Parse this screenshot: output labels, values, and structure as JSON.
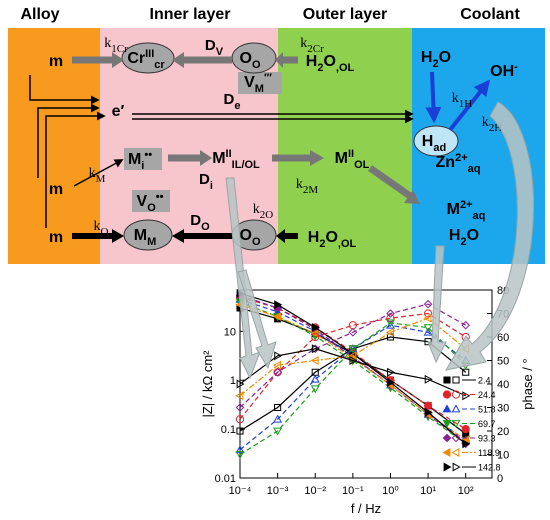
{
  "headers": [
    "Alloy",
    "Inner layer",
    "Outer layer",
    "Coolant"
  ],
  "species": [
    [
      {
        "text": "m"
      }
    ],
    [
      {
        "text": "m"
      }
    ],
    [
      {
        "text": "m"
      }
    ],
    [
      {
        "text": "Cr"
      },
      {
        "text": "III",
        "pos": "sup"
      },
      {
        "text": "cr",
        "pos": "sub"
      }
    ],
    [
      {
        "text": "O"
      },
      {
        "text": "O",
        "pos": "sub"
      }
    ],
    [
      {
        "text": "H"
      },
      {
        "text": "2",
        "pos": "sub"
      },
      {
        "text": "O"
      },
      {
        "text": ",OL",
        "pos": "sub"
      }
    ],
    [
      {
        "text": "V"
      },
      {
        "text": "M",
        "pos": "sub"
      },
      {
        "text": "′′′",
        "pos": "sup"
      }
    ],
    [
      {
        "text": "e′"
      }
    ],
    [
      {
        "text": "M"
      },
      {
        "text": "i",
        "pos": "sub"
      },
      {
        "text": "••",
        "pos": "sup"
      }
    ],
    [
      {
        "text": "M"
      },
      {
        "text": "II",
        "pos": "sup"
      },
      {
        "text": "IL/OL",
        "pos": "sub"
      }
    ],
    [
      {
        "text": "M"
      },
      {
        "text": "II",
        "pos": "sup"
      },
      {
        "text": "OL",
        "pos": "sub"
      }
    ],
    [
      {
        "text": "V"
      },
      {
        "text": "O",
        "pos": "sub"
      },
      {
        "text": "••",
        "pos": "sup"
      }
    ],
    [
      {
        "text": "M"
      },
      {
        "text": "M",
        "pos": "sub"
      }
    ],
    [
      {
        "text": "O"
      },
      {
        "text": "O",
        "pos": "sub"
      }
    ],
    [
      {
        "text": "H"
      },
      {
        "text": "2",
        "pos": "sub"
      },
      {
        "text": "O"
      },
      {
        "text": ",OL",
        "pos": "sub"
      }
    ],
    [
      {
        "text": "H"
      },
      {
        "text": "2",
        "pos": "sub"
      },
      {
        "text": "O"
      }
    ],
    [
      {
        "text": "OH"
      },
      {
        "text": "-",
        "pos": "sup"
      }
    ],
    [
      {
        "text": "H"
      },
      {
        "text": "ad",
        "pos": "sub"
      }
    ],
    [
      {
        "text": "Zn"
      },
      {
        "text": "2+",
        "pos": "sup"
      },
      {
        "text": "aq",
        "pos": "sub"
      }
    ],
    [
      {
        "text": "M"
      },
      {
        "text": "2+",
        "pos": "sup"
      },
      {
        "text": "aq",
        "pos": "sub"
      }
    ],
    [
      {
        "text": "H"
      },
      {
        "text": "2",
        "pos": "sub"
      },
      {
        "text": "O"
      }
    ]
  ],
  "rates": [
    [
      {
        "text": "k"
      },
      {
        "text": "1Cr",
        "pos": "sub"
      }
    ],
    [
      {
        "text": "D"
      },
      {
        "text": "V",
        "pos": "sub"
      }
    ],
    [
      {
        "text": "k"
      },
      {
        "text": "2Cr",
        "pos": "sub"
      }
    ],
    [
      {
        "text": "D"
      },
      {
        "text": "e",
        "pos": "sub"
      }
    ],
    [
      {
        "text": "k"
      },
      {
        "text": "M",
        "pos": "sub"
      }
    ],
    [
      {
        "text": "D"
      },
      {
        "text": "i",
        "pos": "sub"
      }
    ],
    [
      {
        "text": "k"
      },
      {
        "text": "2M",
        "pos": "sub"
      }
    ],
    [
      {
        "text": "k"
      },
      {
        "text": "O",
        "pos": "sub"
      }
    ],
    [
      {
        "text": "D"
      },
      {
        "text": "O",
        "pos": "sub"
      }
    ],
    [
      {
        "text": "k"
      },
      {
        "text": "2O",
        "pos": "sub"
      }
    ],
    [
      {
        "text": "k"
      },
      {
        "text": "1H",
        "pos": "sub"
      }
    ],
    [
      {
        "text": "k"
      },
      {
        "text": "2H",
        "pos": "sub"
      }
    ]
  ],
  "chart_data": {
    "type": "scatter",
    "xlabel": "f / Hz",
    "ylabel": "|Z| / kΩ cm²",
    "y2label": "phase / °",
    "log_x": true,
    "log_y": true,
    "x": [
      0.0001,
      0.001,
      0.01,
      0.1,
      1,
      10,
      100
    ],
    "xlim": [
      0.0001,
      500
    ],
    "xticks": [
      {
        "value": 0.0001,
        "label": "10⁻⁴"
      },
      {
        "value": 0.001,
        "label": "10⁻³"
      },
      {
        "value": 0.01,
        "label": "10⁻²"
      },
      {
        "value": 0.1,
        "label": "10⁻¹"
      },
      {
        "value": 1,
        "label": "10⁰"
      },
      {
        "value": 10,
        "label": "10¹"
      },
      {
        "value": 100,
        "label": "10²"
      }
    ],
    "ylim": [
      0.01,
      70
    ],
    "yticks": [
      0.01,
      0.1,
      1,
      10
    ],
    "y2lim": [
      0,
      80
    ],
    "y2ticks": [
      0,
      10,
      20,
      30,
      40,
      50,
      60,
      70,
      80
    ],
    "series": [
      {
        "name": "2.4",
        "color": "#000000",
        "marker": "square",
        "filled": true,
        "line": "solid",
        "values": [
          30,
          18,
          9,
          3.5,
          1,
          0.3,
          0.08
        ]
      },
      {
        "name": "24.4",
        "color": "#e0242a",
        "marker": "circle",
        "filled": true,
        "line": "dash",
        "values": [
          50,
          30,
          12,
          3.8,
          1,
          0.3,
          0.1
        ]
      },
      {
        "name": "51.8",
        "color": "#1f3fd6",
        "marker": "triangle",
        "filled": true,
        "line": "dash",
        "values": [
          45,
          25,
          10,
          3,
          0.8,
          0.2,
          0.06
        ]
      },
      {
        "name": "69.7",
        "color": "#1a9a1a",
        "marker": "triangle-down",
        "filled": true,
        "line": "dash",
        "values": [
          40,
          20,
          8,
          2.5,
          0.7,
          0.18,
          0.05
        ]
      },
      {
        "name": "93.3",
        "color": "#8a1f9a",
        "marker": "diamond",
        "filled": true,
        "line": "dash",
        "values": [
          55,
          30,
          11,
          3,
          0.8,
          0.2,
          0.05
        ]
      },
      {
        "name": "118.9",
        "color": "#f08a00",
        "marker": "triangle-left",
        "filled": true,
        "line": "dashdot",
        "values": [
          35,
          20,
          9,
          2.8,
          0.8,
          0.2,
          0.06
        ]
      },
      {
        "name": "142.8",
        "color": "#000000",
        "marker": "triangle-right",
        "filled": true,
        "line": "solid",
        "values": [
          60,
          35,
          12,
          3.5,
          0.9,
          0.22,
          0.05
        ]
      },
      {
        "axis": "y2",
        "color": "#000000",
        "marker": "square",
        "filled": false,
        "line": "solid",
        "values": [
          20,
          30,
          45,
          55,
          60,
          58,
          45
        ]
      },
      {
        "axis": "y2",
        "color": "#e0242a",
        "marker": "circle",
        "filled": false,
        "line": "dash",
        "values": [
          25,
          45,
          60,
          65,
          68,
          70,
          60
        ]
      },
      {
        "axis": "y2",
        "color": "#1f3fd6",
        "marker": "triangle",
        "filled": false,
        "line": "dash",
        "values": [
          12,
          25,
          42,
          55,
          65,
          62,
          50
        ]
      },
      {
        "axis": "y2",
        "color": "#1a9a1a",
        "marker": "triangle-down",
        "filled": false,
        "line": "dash",
        "values": [
          10,
          20,
          38,
          55,
          66,
          64,
          48
        ]
      },
      {
        "axis": "y2",
        "color": "#8a1f9a",
        "marker": "diamond",
        "filled": false,
        "line": "dash",
        "values": [
          30,
          45,
          55,
          62,
          70,
          74,
          65
        ]
      },
      {
        "axis": "y2",
        "color": "#f08a00",
        "marker": "triangle-left",
        "filled": false,
        "line": "dashdot",
        "values": [
          35,
          48,
          50,
          52,
          62,
          68,
          55
        ]
      },
      {
        "axis": "y2",
        "color": "#000000",
        "marker": "triangle-right",
        "filled": false,
        "line": "solid",
        "values": [
          40,
          52,
          55,
          50,
          45,
          42,
          35
        ]
      }
    ]
  }
}
